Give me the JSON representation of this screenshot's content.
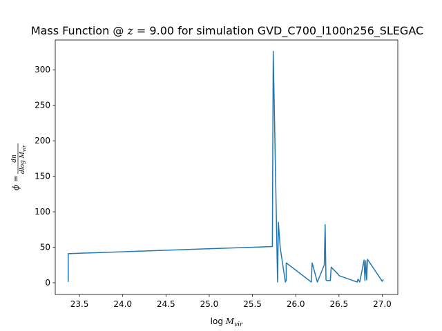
{
  "chart_data": {
    "type": "line",
    "title_prefix": "Mass Function @ ",
    "title_math": "z",
    "title_suffix": " = 9.00 for simulation GVD_C700_l100n256_SLEGAC",
    "xlabel_prefix": "log ",
    "xlabel_var": "M",
    "xlabel_sub": "vir",
    "ylabel_lhs": "ϕ = ",
    "ylabel_num": "dn",
    "ylabel_den": "dlog M",
    "ylabel_den_sub": "vir",
    "xlim": [
      23.22,
      27.18
    ],
    "ylim": [
      -16.5,
      342.0
    ],
    "xticks": [
      23.5,
      24.0,
      24.5,
      25.0,
      25.5,
      26.0,
      26.5,
      27.0
    ],
    "xtick_labels": [
      "23.5",
      "24.0",
      "24.5",
      "25.0",
      "25.5",
      "26.0",
      "26.5",
      "27.0"
    ],
    "yticks": [
      0,
      50,
      100,
      150,
      200,
      250,
      300
    ],
    "ytick_labels": [
      "0",
      "50",
      "100",
      "150",
      "200",
      "250",
      "300"
    ],
    "grid": false,
    "legend": "none",
    "series": [
      {
        "color": "#1f77b4",
        "x": [
          23.37,
          23.37,
          25.73,
          25.74,
          25.79,
          25.8,
          25.82,
          25.88,
          25.89,
          25.89,
          26.18,
          26.19,
          26.25,
          26.33,
          26.34,
          26.35,
          26.36,
          26.4,
          26.41,
          26.49,
          26.5,
          26.71,
          26.72,
          26.74,
          26.79,
          26.8,
          26.81,
          26.82,
          26.83,
          27.0,
          27.01
        ],
        "y": [
          2,
          41,
          51,
          326,
          1,
          85,
          50,
          1,
          3,
          28,
          1,
          28,
          1,
          25,
          82,
          4,
          3,
          3,
          22,
          12,
          10,
          1,
          5,
          1,
          32,
          3,
          31,
          4,
          33,
          2,
          4
        ]
      }
    ]
  }
}
